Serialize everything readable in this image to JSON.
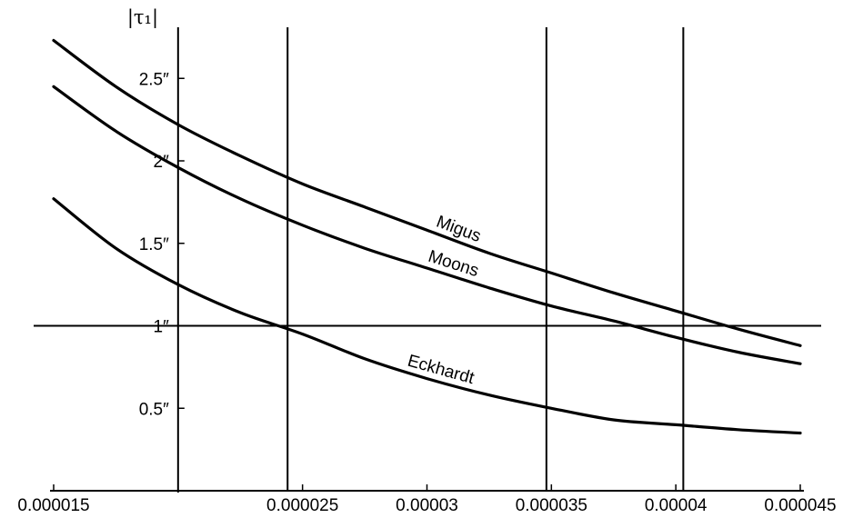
{
  "chart_data": {
    "type": "line",
    "ylabel": "|τ₁|",
    "xlabel": "",
    "xlim": [
      1.5e-05,
      4.5e-05
    ],
    "ylim": [
      0,
      2.9
    ],
    "x_ticks": [
      {
        "value": 1.5e-05,
        "label": "0.000015"
      },
      {
        "value": 2.5e-05,
        "label": "0.000025"
      },
      {
        "value": 3e-05,
        "label": "0.00003"
      },
      {
        "value": 3.5e-05,
        "label": "0.000035"
      },
      {
        "value": 4e-05,
        "label": "0.00004"
      },
      {
        "value": 4.5e-05,
        "label": "0.000045"
      }
    ],
    "y_ticks": [
      {
        "value": 0.5,
        "label": "0.5″"
      },
      {
        "value": 1,
        "label": "1″"
      },
      {
        "value": 1.5,
        "label": "1.5″"
      },
      {
        "value": 2,
        "label": "2″"
      },
      {
        "value": 2.5,
        "label": "2.5″"
      }
    ],
    "reference_lines": {
      "horizontal": [
        1
      ],
      "vertical": [
        2e-05,
        2.44e-05,
        3.48e-05,
        4.03e-05
      ]
    },
    "series": [
      {
        "name": "Migus",
        "x": [
          1.5e-05,
          1.75e-05,
          2e-05,
          2.25e-05,
          2.5e-05,
          2.75e-05,
          3e-05,
          3.25e-05,
          3.5e-05,
          3.75e-05,
          4e-05,
          4.25e-05,
          4.5e-05
        ],
        "y": [
          2.73,
          2.45,
          2.22,
          2.03,
          1.86,
          1.72,
          1.58,
          1.44,
          1.32,
          1.2,
          1.09,
          0.98,
          0.88
        ]
      },
      {
        "name": "Moons",
        "x": [
          1.5e-05,
          1.75e-05,
          2e-05,
          2.25e-05,
          2.5e-05,
          2.75e-05,
          3e-05,
          3.25e-05,
          3.5e-05,
          3.75e-05,
          4e-05,
          4.25e-05,
          4.5e-05
        ],
        "y": [
          2.45,
          2.18,
          1.96,
          1.77,
          1.61,
          1.47,
          1.35,
          1.23,
          1.12,
          1.03,
          0.93,
          0.84,
          0.77
        ]
      },
      {
        "name": "Eckhardt",
        "x": [
          1.5e-05,
          1.75e-05,
          2e-05,
          2.25e-05,
          2.5e-05,
          2.75e-05,
          3e-05,
          3.25e-05,
          3.5e-05,
          3.75e-05,
          4e-05,
          4.25e-05,
          4.5e-05
        ],
        "y": [
          1.77,
          1.47,
          1.25,
          1.08,
          0.95,
          0.8,
          0.68,
          0.58,
          0.5,
          0.43,
          0.4,
          0.37,
          0.35
        ]
      }
    ],
    "curve_labels": [
      {
        "text": "Migus",
        "series": "Migus",
        "x": 3.12e-05
      },
      {
        "text": "Moons",
        "series": "Moons",
        "x": 3.1e-05
      },
      {
        "text": "Eckhardt",
        "series": "Eckhardt",
        "x": 3.05e-05
      }
    ],
    "grid": false,
    "legend": "none"
  }
}
